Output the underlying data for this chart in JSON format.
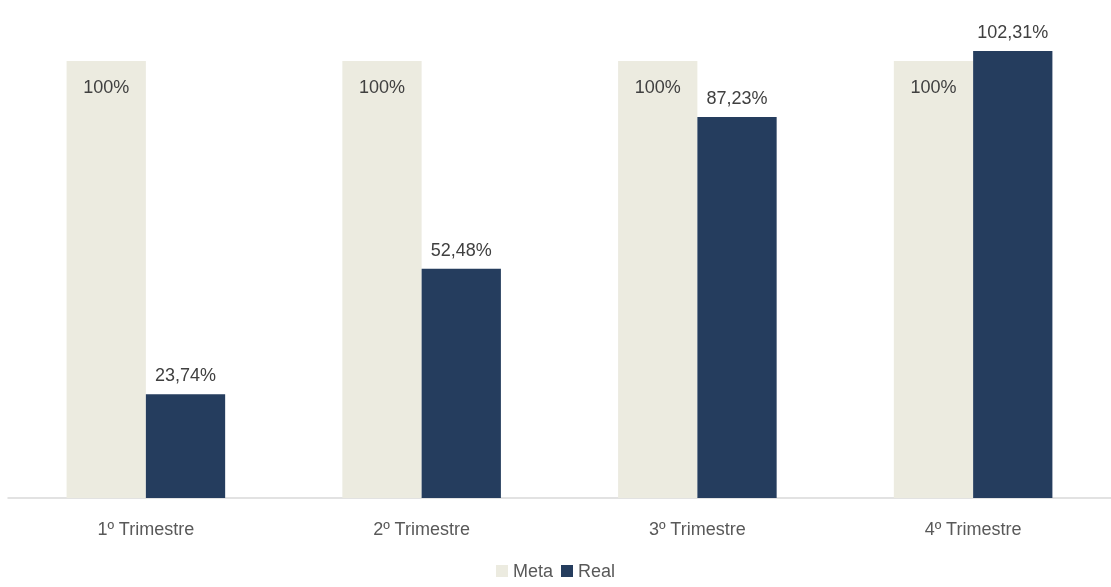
{
  "chart_data": {
    "type": "bar",
    "categories": [
      "1º Trimestre",
      "2º Trimestre",
      "3º Trimestre",
      "4º Trimestre"
    ],
    "series": [
      {
        "name": "Meta",
        "color": "#ecebe0",
        "values": [
          100,
          100,
          100,
          100
        ],
        "value_labels": [
          "100%",
          "100%",
          "100%",
          "100%"
        ]
      },
      {
        "name": "Real",
        "color": "#253d5e",
        "values": [
          23.74,
          52.48,
          87.23,
          102.31
        ],
        "value_labels": [
          "23,74%",
          "52,48%",
          "87,23%",
          "102,31%"
        ]
      }
    ],
    "legend": "bottom",
    "grid": false
  }
}
